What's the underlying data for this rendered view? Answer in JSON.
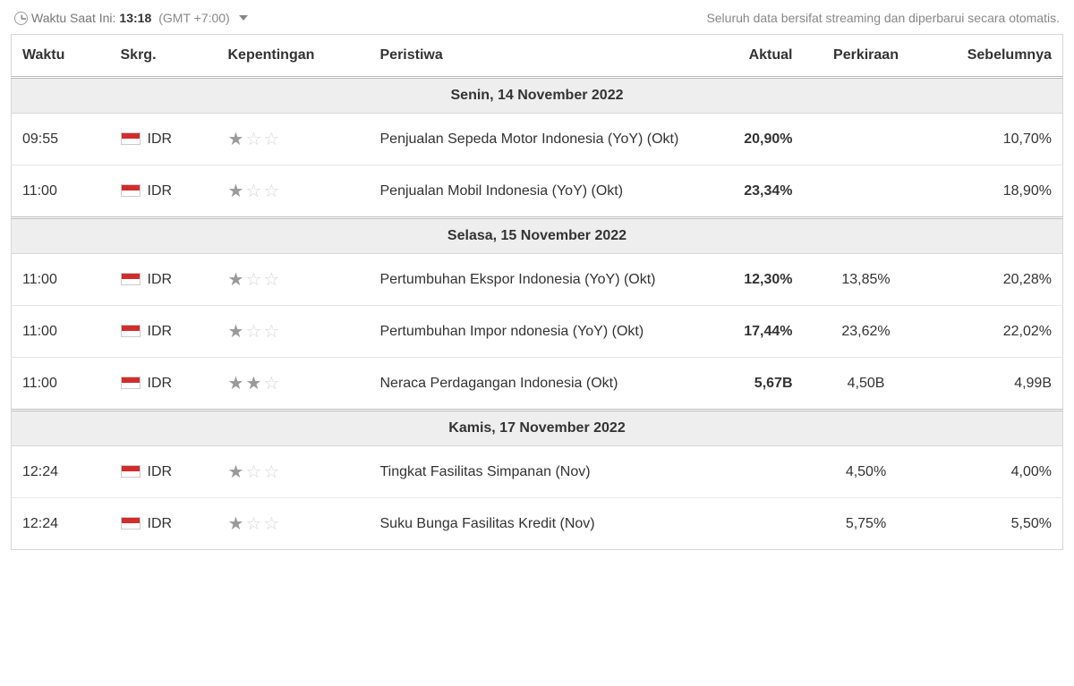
{
  "topbar": {
    "time_label": "Waktu Saat Ini:",
    "time_value": "13:18",
    "timezone": "(GMT +7:00)",
    "streaming_note": "Seluruh data bersifat streaming dan diperbarui secara otomatis."
  },
  "columns": {
    "time": "Waktu",
    "currency": "Skrg.",
    "importance": "Kepentingan",
    "event": "Peristiwa",
    "actual": "Aktual",
    "forecast": "Perkiraan",
    "previous": "Sebelumnya"
  },
  "flag_colors": {
    "id_top": "#d22d2d",
    "id_bottom": "#ffffff"
  },
  "groups": [
    {
      "label": "Senin, 14 November 2022",
      "rows": [
        {
          "time": "09:55",
          "currency": "IDR",
          "stars": 1,
          "event": "Penjualan Sepeda Motor Indonesia (YoY) (Okt)",
          "actual": "20,90%",
          "actual_tone": "bold",
          "forecast": "",
          "previous": "10,70%"
        },
        {
          "time": "11:00",
          "currency": "IDR",
          "stars": 1,
          "event": "Penjualan Mobil Indonesia (YoY) (Okt)",
          "actual": "23,34%",
          "actual_tone": "bold",
          "forecast": "",
          "previous": "18,90%"
        }
      ]
    },
    {
      "label": "Selasa, 15 November 2022",
      "rows": [
        {
          "time": "11:00",
          "currency": "IDR",
          "stars": 1,
          "event": "Pertumbuhan Ekspor Indonesia (YoY) (Okt)",
          "actual": "12,30%",
          "actual_tone": "red",
          "forecast": "13,85%",
          "previous": "20,28%"
        },
        {
          "time": "11:00",
          "currency": "IDR",
          "stars": 1,
          "event": "Pertumbuhan Impor ndonesia (YoY) (Okt)",
          "actual": "17,44%",
          "actual_tone": "red",
          "forecast": "23,62%",
          "previous": "22,02%"
        },
        {
          "time": "11:00",
          "currency": "IDR",
          "stars": 2,
          "event": "Neraca Perdagangan Indonesia (Okt)",
          "actual": "5,67B",
          "actual_tone": "green",
          "forecast": "4,50B",
          "previous": "4,99B"
        }
      ]
    },
    {
      "label": "Kamis, 17 November 2022",
      "rows": [
        {
          "time": "12:24",
          "currency": "IDR",
          "stars": 1,
          "event": "Tingkat Fasilitas Simpanan (Nov)",
          "actual": "",
          "actual_tone": "bold",
          "forecast": "4,50%",
          "previous": "4,00%"
        },
        {
          "time": "12:24",
          "currency": "IDR",
          "stars": 1,
          "event": "Suku Bunga Fasilitas Kredit (Nov)",
          "actual": "",
          "actual_tone": "bold",
          "forecast": "5,75%",
          "previous": "5,50%"
        }
      ]
    }
  ]
}
